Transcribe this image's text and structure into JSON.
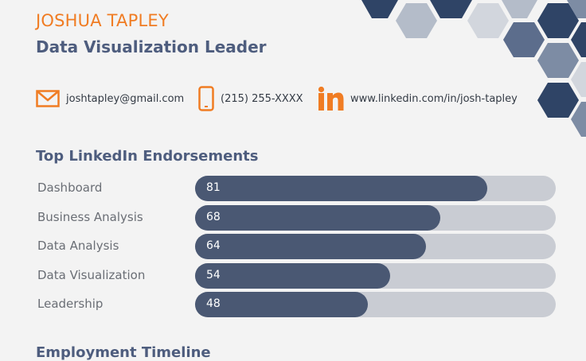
{
  "header": {
    "name": "JOSHUA TAPLEY",
    "title": "Data Visualization Leader"
  },
  "contact": {
    "email": "joshtapley@gmail.com",
    "phone": "(215) 255-XXXX",
    "linkedin": "www.linkedin.com/in/josh-tapley",
    "icons": [
      "email-icon",
      "phone-icon",
      "linkedin-icon"
    ]
  },
  "colors": {
    "accent_orange": "#f07c23",
    "heading_blue": "#4e5d7e",
    "bar_fill": "#4a5873",
    "bar_track": "#c9ccd3",
    "hex_palette": [
      "#2f4466",
      "#5c6d8c",
      "#7d8ca4",
      "#b4bcc9",
      "#d2d6dd"
    ]
  },
  "sections": {
    "endorsements_title": "Top LinkedIn Endorsements",
    "timeline_title": "Employment Timeline"
  },
  "chart_data": {
    "type": "bar",
    "orientation": "horizontal",
    "title": "Top LinkedIn Endorsements",
    "categories": [
      "Dashboard",
      "Business Analysis",
      "Data Analysis",
      "Data Visualization",
      "Leadership"
    ],
    "values": [
      81,
      68,
      64,
      54,
      48
    ],
    "xlim": [
      0,
      100
    ],
    "grid": false
  }
}
